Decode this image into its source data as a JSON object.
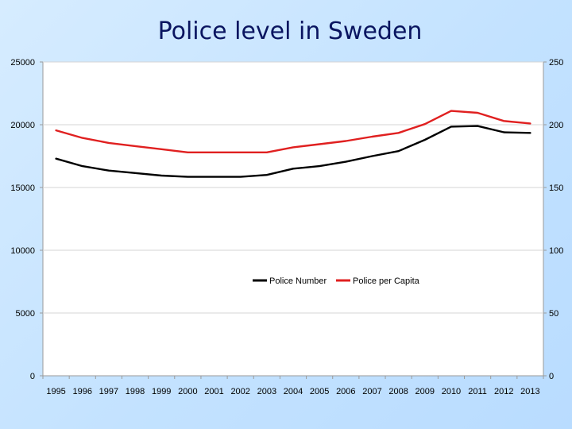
{
  "slide": {
    "title": "Police level in Sweden"
  },
  "chart_data": {
    "type": "line",
    "title": "Police level in Sweden",
    "x": [
      "1995",
      "1996",
      "1997",
      "1998",
      "1999",
      "2000",
      "2001",
      "2002",
      "2003",
      "2004",
      "2005",
      "2006",
      "2007",
      "2008",
      "2009",
      "2010",
      "2011",
      "2012",
      "2013"
    ],
    "y_left": {
      "min": 0,
      "max": 25000,
      "ticks": [
        0,
        5000,
        10000,
        15000,
        20000,
        25000
      ]
    },
    "y_right": {
      "min": 0,
      "max": 250,
      "ticks": [
        0,
        50,
        100,
        150,
        200,
        250
      ]
    },
    "series": [
      {
        "name": "Police Number",
        "axis": "left",
        "color": "#000000",
        "values": [
          17300,
          16700,
          16350,
          16150,
          15950,
          15850,
          15850,
          15850,
          16000,
          16500,
          16700,
          17050,
          17500,
          17900,
          18800,
          19850,
          19900,
          19400,
          19350
        ]
      },
      {
        "name": "Police per Capita",
        "axis": "right",
        "color": "#e02020",
        "values": [
          195.5,
          189.5,
          185.5,
          183,
          180.5,
          178,
          178,
          178,
          178,
          182,
          184.5,
          187,
          190.5,
          193.5,
          200.5,
          211,
          209.5,
          203,
          201
        ]
      }
    ],
    "grid": true,
    "legend": "inside-center"
  }
}
